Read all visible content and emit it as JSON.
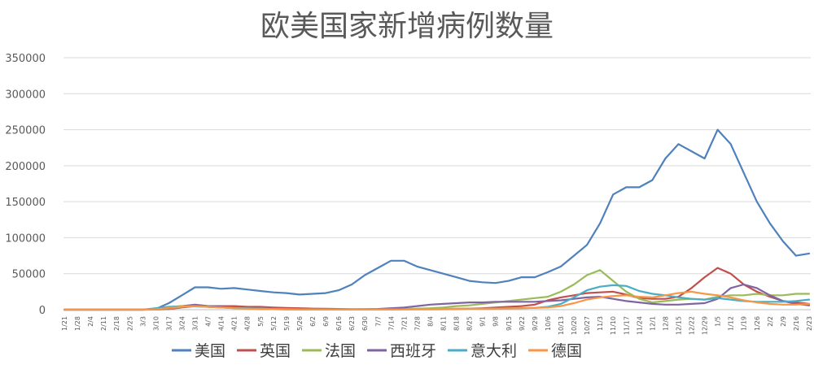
{
  "chart_data": {
    "type": "line",
    "title": "欧美国家新增病例数量",
    "xlabel": "",
    "ylabel": "",
    "ylim": [
      0,
      350000
    ],
    "yticks": [
      0,
      50000,
      100000,
      150000,
      200000,
      250000,
      300000,
      350000
    ],
    "ytick_labels": [
      "0",
      "50000",
      "100000",
      "150000",
      "200000",
      "250000",
      "300000",
      "350000"
    ],
    "x_tick_labels": [
      "1/21",
      "1/28",
      "2/4",
      "2/11",
      "2/18",
      "2/25",
      "3/3",
      "3/10",
      "3/17",
      "3/24",
      "3/31",
      "4/7",
      "4/14",
      "4/21",
      "4/28",
      "5/5",
      "5/12",
      "5/19",
      "5/26",
      "6/2",
      "6/9",
      "6/16",
      "6/23",
      "6/30",
      "7/7",
      "7/14",
      "7/21",
      "7/28",
      "8/4",
      "8/11",
      "8/18",
      "8/25",
      "9/1",
      "9/8",
      "9/15",
      "9/22",
      "9/29",
      "10/6",
      "10/13",
      "10/20",
      "10/27",
      "11/3",
      "11/10",
      "11/17",
      "11/24",
      "12/1",
      "12/8",
      "12/15",
      "12/22",
      "12/29",
      "1/5",
      "1/12",
      "1/19",
      "1/26",
      "2/2",
      "2/9",
      "2/16",
      "2/23"
    ],
    "x_note": "weekly date ticks from 1/21 to 2/23; one point per week per series",
    "grid": true,
    "legend_position": "bottom",
    "series": [
      {
        "name": "美国",
        "color": "#4f81bd",
        "values": [
          0,
          0,
          0,
          0,
          0,
          0,
          0,
          1000,
          9000,
          20000,
          31000,
          31000,
          29000,
          30000,
          28000,
          26000,
          24000,
          23000,
          21000,
          22000,
          23000,
          27000,
          35000,
          48000,
          58000,
          68000,
          68000,
          60000,
          55000,
          50000,
          45000,
          40000,
          38000,
          37000,
          40000,
          45000,
          45000,
          52000,
          60000,
          75000,
          90000,
          120000,
          160000,
          170000,
          170000,
          180000,
          210000,
          230000,
          220000,
          210000,
          250000,
          230000,
          190000,
          150000,
          120000,
          95000,
          75000,
          78000
        ]
      },
      {
        "name": "英国",
        "color": "#c0504d",
        "values": [
          0,
          0,
          0,
          0,
          0,
          0,
          0,
          100,
          800,
          3000,
          5000,
          5000,
          5000,
          5000,
          4000,
          4000,
          3000,
          2500,
          2000,
          1500,
          1200,
          1000,
          800,
          700,
          600,
          600,
          700,
          800,
          900,
          1000,
          1200,
          1500,
          2000,
          3000,
          4000,
          5000,
          7000,
          13000,
          17000,
          20000,
          23000,
          24000,
          25000,
          21000,
          16000,
          15000,
          15000,
          18000,
          30000,
          45000,
          58000,
          50000,
          35000,
          25000,
          18000,
          12000,
          10000,
          8000
        ]
      },
      {
        "name": "法国",
        "color": "#9bbb59",
        "values": [
          0,
          0,
          0,
          0,
          0,
          0,
          0,
          200,
          1500,
          4000,
          5000,
          4000,
          3000,
          2000,
          1500,
          1000,
          800,
          600,
          400,
          400,
          500,
          500,
          500,
          600,
          700,
          800,
          1000,
          1500,
          2000,
          3000,
          5000,
          6000,
          8000,
          10000,
          12000,
          14000,
          16000,
          18000,
          25000,
          35000,
          48000,
          55000,
          40000,
          25000,
          15000,
          10000,
          12000,
          14000,
          15000,
          14000,
          18000,
          20000,
          20000,
          22000,
          20000,
          20000,
          22000,
          22000
        ]
      },
      {
        "name": "西班牙",
        "color": "#8064a2",
        "values": [
          0,
          0,
          0,
          0,
          0,
          0,
          0,
          300,
          2000,
          5000,
          7000,
          5000,
          4000,
          3000,
          2000,
          1000,
          700,
          500,
          400,
          300,
          300,
          300,
          400,
          600,
          1000,
          2000,
          3000,
          5000,
          7000,
          8000,
          9000,
          10000,
          10000,
          11000,
          11000,
          11000,
          11000,
          12000,
          13000,
          15000,
          17000,
          18000,
          15000,
          12000,
          10000,
          8000,
          7000,
          7000,
          8000,
          9000,
          15000,
          30000,
          35000,
          30000,
          20000,
          12000,
          8000,
          6000
        ]
      },
      {
        "name": "意大利",
        "color": "#4bacc6",
        "values": [
          0,
          0,
          0,
          0,
          0,
          0,
          0,
          2000,
          4000,
          5000,
          4500,
          4000,
          3000,
          2500,
          2000,
          1500,
          1000,
          700,
          500,
          400,
          300,
          250,
          250,
          250,
          250,
          250,
          300,
          300,
          400,
          600,
          800,
          1200,
          1400,
          1500,
          1700,
          2000,
          2500,
          4000,
          8000,
          17000,
          27000,
          32000,
          34000,
          33000,
          26000,
          22000,
          20000,
          17000,
          15000,
          14000,
          16000,
          14000,
          12000,
          11000,
          11000,
          11000,
          12000,
          14000
        ]
      },
      {
        "name": "德国",
        "color": "#f79646",
        "values": [
          0,
          0,
          0,
          0,
          0,
          0,
          0,
          500,
          2500,
          4500,
          5000,
          4000,
          3000,
          2000,
          1500,
          1000,
          700,
          500,
          400,
          350,
          300,
          400,
          500,
          400,
          400,
          400,
          500,
          600,
          800,
          1000,
          1200,
          1300,
          1400,
          1500,
          1800,
          2000,
          2500,
          3000,
          5000,
          9000,
          14000,
          17000,
          19000,
          20000,
          18000,
          17000,
          20000,
          23000,
          25000,
          22000,
          20000,
          17000,
          13000,
          10000,
          8000,
          7000,
          7000,
          8000
        ]
      }
    ]
  }
}
